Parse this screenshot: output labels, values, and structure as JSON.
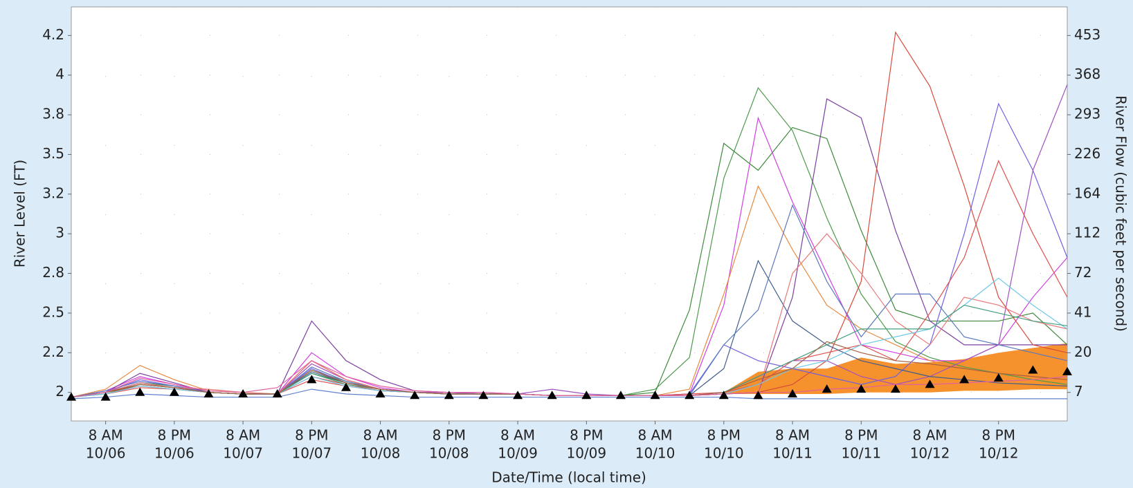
{
  "chart_data": {
    "type": "line",
    "x_label": "Date/Time (local time)",
    "y_label": "River Level (FT)",
    "y2_label": "River Flow (cubic feet per second)",
    "categories": [
      null,
      [
        "8 AM",
        "10/06"
      ],
      null,
      [
        "8 PM",
        "10/06"
      ],
      null,
      [
        "8 AM",
        "10/07"
      ],
      null,
      [
        "8 PM",
        "10/07"
      ],
      null,
      [
        "8 AM",
        "10/08"
      ],
      null,
      [
        "8 PM",
        "10/08"
      ],
      null,
      [
        "8 AM",
        "10/09"
      ],
      null,
      [
        "8 PM",
        "10/09"
      ],
      null,
      [
        "8 AM",
        "10/10"
      ],
      null,
      [
        "8 PM",
        "10/10"
      ],
      null,
      [
        "8 AM",
        "10/11"
      ],
      null,
      [
        "8 PM",
        "10/11"
      ],
      null,
      [
        "8 AM",
        "10/12"
      ],
      null,
      [
        "8 PM",
        "10/12"
      ],
      null,
      null
    ],
    "ylim": [
      1.82,
      4.43
    ],
    "yticks": [
      2.0,
      {
        "value": 2.25,
        "label": "2.2"
      },
      2.5,
      {
        "value": 2.75,
        "label": "2.8"
      },
      3.0,
      {
        "value": 3.25,
        "label": "3.2"
      },
      3.5,
      {
        "value": 3.75,
        "label": "3.8"
      },
      4.0,
      {
        "value": 4.25,
        "label": "4.2"
      }
    ],
    "y2ticks": [
      7,
      20,
      41,
      72,
      112,
      164,
      226,
      293,
      368,
      453
    ],
    "grid": true,
    "band": {
      "color": "#f5922e",
      "lower": [
        null,
        null,
        null,
        null,
        null,
        null,
        null,
        null,
        null,
        null,
        null,
        null,
        null,
        null,
        null,
        null,
        null,
        null,
        null,
        1.99,
        1.99,
        1.99,
        1.99,
        2.0,
        2.0,
        2.0,
        2.01,
        2.01,
        2.02,
        2.02
      ],
      "upper": [
        null,
        null,
        null,
        null,
        null,
        null,
        null,
        null,
        null,
        null,
        null,
        null,
        null,
        null,
        null,
        null,
        null,
        null,
        null,
        2.0,
        2.13,
        2.15,
        2.15,
        2.22,
        2.18,
        2.19,
        2.21,
        2.25,
        2.28,
        2.31
      ]
    },
    "series": [
      {
        "color": "#4c9a4c",
        "values": [
          1.97,
          2.0,
          2.06,
          2.04,
          2.0,
          1.99,
          1.99,
          2.14,
          2.07,
          2.02,
          2.0,
          1.99,
          1.99,
          1.99,
          1.98,
          1.98,
          1.98,
          2.02,
          2.22,
          3.35,
          3.92,
          3.65,
          3.1,
          2.62,
          2.32,
          2.22,
          2.16,
          2.12,
          2.08,
          2.05
        ]
      },
      {
        "color": "#3d8a3d",
        "values": [
          1.97,
          1.99,
          2.05,
          2.03,
          2.0,
          1.99,
          1.99,
          2.12,
          2.06,
          2.02,
          2.0,
          1.99,
          1.99,
          1.99,
          1.98,
          1.98,
          1.98,
          2.0,
          2.52,
          3.57,
          3.4,
          3.67,
          3.6,
          3.02,
          2.52,
          2.45,
          2.45,
          2.45,
          2.5,
          2.3
        ]
      },
      {
        "color": "#d040e0",
        "values": [
          1.97,
          2.01,
          2.1,
          2.05,
          2.0,
          1.99,
          1.99,
          2.25,
          2.1,
          2.03,
          2.0,
          2.0,
          2.0,
          1.99,
          1.98,
          1.98,
          1.98,
          1.98,
          1.99,
          2.55,
          3.73,
          3.2,
          2.75,
          2.3,
          2.25,
          2.2,
          2.2,
          2.3,
          2.6,
          2.85
        ]
      },
      {
        "color": "#e88a40",
        "values": [
          1.97,
          2.02,
          2.17,
          2.08,
          2.01,
          2.0,
          1.99,
          2.2,
          2.08,
          2.02,
          2.0,
          1.99,
          1.99,
          1.99,
          1.98,
          1.98,
          1.98,
          1.98,
          2.02,
          2.62,
          3.3,
          2.9,
          2.55,
          2.4,
          2.3,
          2.2,
          2.15,
          2.12,
          2.1,
          2.08
        ]
      },
      {
        "color": "#7a3ea0",
        "values": [
          1.97,
          2.0,
          2.12,
          2.06,
          2.0,
          1.99,
          1.99,
          2.45,
          2.2,
          2.08,
          2.01,
          2.0,
          1.99,
          1.99,
          1.98,
          1.98,
          1.98,
          1.98,
          1.98,
          1.99,
          2.0,
          2.6,
          3.85,
          3.73,
          3.02,
          2.45,
          2.3,
          2.3,
          2.3,
          2.3
        ]
      },
      {
        "color": "#d84a3a",
        "values": [
          1.97,
          2.0,
          2.04,
          2.02,
          2.0,
          1.99,
          1.99,
          2.1,
          2.05,
          2.01,
          2.0,
          1.99,
          1.99,
          1.99,
          1.98,
          1.98,
          1.98,
          1.98,
          1.98,
          1.99,
          2.0,
          2.05,
          2.2,
          2.7,
          4.27,
          3.93,
          3.3,
          2.6,
          2.3,
          2.25
        ]
      },
      {
        "color": "#7060e0",
        "values": [
          1.97,
          2.0,
          2.08,
          2.04,
          2.0,
          1.99,
          1.99,
          2.15,
          2.06,
          2.02,
          2.0,
          1.99,
          1.99,
          1.99,
          1.98,
          1.98,
          1.98,
          1.98,
          1.99,
          2.3,
          2.2,
          2.15,
          2.1,
          2.05,
          2.1,
          2.3,
          3.0,
          3.82,
          3.4,
          2.85
        ]
      },
      {
        "color": "#e05050",
        "values": [
          1.97,
          1.99,
          2.03,
          2.02,
          2.0,
          1.99,
          1.99,
          2.08,
          2.04,
          2.01,
          2.0,
          1.99,
          1.99,
          1.99,
          1.98,
          1.98,
          1.98,
          1.98,
          1.99,
          2.0,
          2.05,
          2.2,
          2.25,
          2.3,
          2.2,
          2.5,
          2.85,
          3.46,
          3.0,
          2.6
        ]
      },
      {
        "color": "#a050c0",
        "values": [
          1.97,
          2.0,
          2.06,
          2.03,
          2.0,
          1.99,
          1.99,
          2.18,
          2.08,
          2.02,
          2.0,
          2.0,
          1.99,
          1.99,
          2.02,
          1.99,
          1.98,
          1.98,
          1.98,
          2.0,
          2.1,
          2.2,
          2.2,
          2.1,
          2.05,
          2.1,
          2.2,
          2.3,
          3.4,
          3.94
        ]
      },
      {
        "color": "#405c8c",
        "values": [
          1.97,
          2.0,
          2.05,
          2.03,
          2.0,
          1.99,
          1.99,
          2.13,
          2.06,
          2.02,
          2.0,
          1.99,
          1.99,
          1.99,
          1.98,
          1.98,
          1.98,
          1.98,
          1.98,
          2.15,
          2.83,
          2.45,
          2.3,
          2.2,
          2.15,
          2.1,
          2.08,
          2.06,
          2.05,
          2.04
        ]
      },
      {
        "color": "#5a78c0",
        "values": [
          1.97,
          2.01,
          2.07,
          2.04,
          2.0,
          1.99,
          1.99,
          2.16,
          2.07,
          2.02,
          2.0,
          1.99,
          1.99,
          1.99,
          1.98,
          1.98,
          1.98,
          1.98,
          1.98,
          2.3,
          2.52,
          3.18,
          2.7,
          2.35,
          2.62,
          2.62,
          2.35,
          2.3,
          2.25,
          2.2
        ]
      },
      {
        "color": "#e87878",
        "values": [
          1.97,
          2.0,
          2.06,
          2.03,
          2.02,
          2.0,
          1.99,
          2.2,
          2.08,
          2.02,
          2.0,
          1.99,
          1.99,
          1.99,
          1.98,
          1.98,
          1.98,
          1.98,
          1.98,
          1.99,
          2.0,
          2.75,
          3.0,
          2.75,
          2.45,
          2.3,
          2.6,
          2.55,
          2.45,
          2.4
        ]
      },
      {
        "color": "#70c8e8",
        "values": [
          1.97,
          1.99,
          2.04,
          2.02,
          2.0,
          1.99,
          1.99,
          2.1,
          2.04,
          2.01,
          2.0,
          1.99,
          1.99,
          1.99,
          1.98,
          1.98,
          1.98,
          1.98,
          1.98,
          1.99,
          2.05,
          2.15,
          2.2,
          2.3,
          2.35,
          2.4,
          2.55,
          2.72,
          2.55,
          2.4
        ]
      },
      {
        "color": "#40a080",
        "values": [
          1.97,
          2.0,
          2.05,
          2.03,
          2.0,
          1.99,
          1.99,
          2.12,
          2.05,
          2.02,
          2.0,
          1.99,
          1.99,
          1.99,
          1.98,
          1.98,
          1.98,
          1.98,
          1.98,
          2.0,
          2.1,
          2.2,
          2.3,
          2.4,
          2.4,
          2.4,
          2.55,
          2.5,
          2.45,
          2.42
        ]
      },
      {
        "color": "#a86040",
        "values": [
          1.97,
          2.0,
          2.05,
          2.03,
          2.0,
          1.99,
          1.99,
          2.14,
          2.06,
          2.02,
          2.0,
          1.99,
          1.99,
          1.99,
          1.98,
          1.98,
          1.98,
          1.98,
          1.98,
          2.0,
          2.08,
          2.15,
          2.32,
          2.25,
          2.2,
          2.18,
          2.15,
          2.12,
          2.1,
          2.08
        ]
      },
      {
        "color": "#e060a0",
        "values": [
          1.97,
          2.0,
          2.09,
          2.05,
          2.01,
          2.0,
          2.03,
          2.2,
          2.1,
          2.04,
          2.01,
          2.0,
          2.0,
          1.99,
          1.98,
          1.98,
          1.98,
          1.98,
          1.98,
          1.99,
          2.0,
          2.0,
          2.02,
          2.03,
          2.05,
          2.05,
          2.06,
          2.07,
          2.08,
          2.1
        ]
      },
      {
        "color": "#6080d0",
        "values": [
          1.96,
          1.97,
          1.99,
          1.98,
          1.97,
          1.97,
          1.97,
          2.02,
          1.99,
          1.98,
          1.97,
          1.97,
          1.97,
          1.97,
          1.97,
          1.97,
          1.97,
          1.97,
          1.97,
          1.97,
          1.96,
          1.96,
          1.96,
          1.96,
          1.96,
          1.96,
          1.96,
          1.96,
          1.96,
          1.96
        ]
      }
    ],
    "markers": {
      "color": "#000000",
      "marker": "triangle",
      "values": [
        1.97,
        1.97,
        2.0,
        2.0,
        1.99,
        1.99,
        1.99,
        2.08,
        2.03,
        1.99,
        1.98,
        1.98,
        1.98,
        1.98,
        1.98,
        1.98,
        1.98,
        1.98,
        1.98,
        1.98,
        1.98,
        1.99,
        2.02,
        2.02,
        2.02,
        2.05,
        2.08,
        2.09,
        2.14,
        2.13
      ]
    }
  }
}
